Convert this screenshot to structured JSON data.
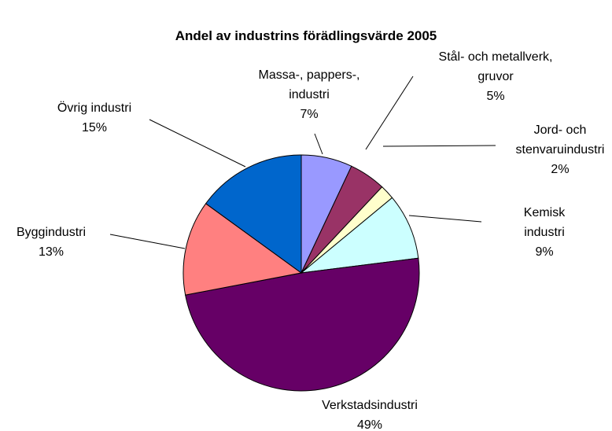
{
  "chart_data": {
    "type": "pie",
    "title": "Andel av industrins förädlingsvärde 2005",
    "categories": [
      "Massa-, pappers-,\nindustri",
      "Stål- och metallverk,\ngruvor",
      "Jord- och\nstenvaruindustri",
      "Kemisk industri",
      "Verkstadsindustri",
      "Byggindustri",
      "Övrig industri"
    ],
    "values": [
      7,
      5,
      2,
      9,
      49,
      13,
      15
    ],
    "value_labels": [
      "7%",
      "5%",
      "2%",
      "9%",
      "49%",
      "13%",
      "15%"
    ],
    "colors": [
      "#9999ff",
      "#993366",
      "#ffffcc",
      "#ccffff",
      "#660066",
      "#ff8080",
      "#0066cc"
    ]
  }
}
